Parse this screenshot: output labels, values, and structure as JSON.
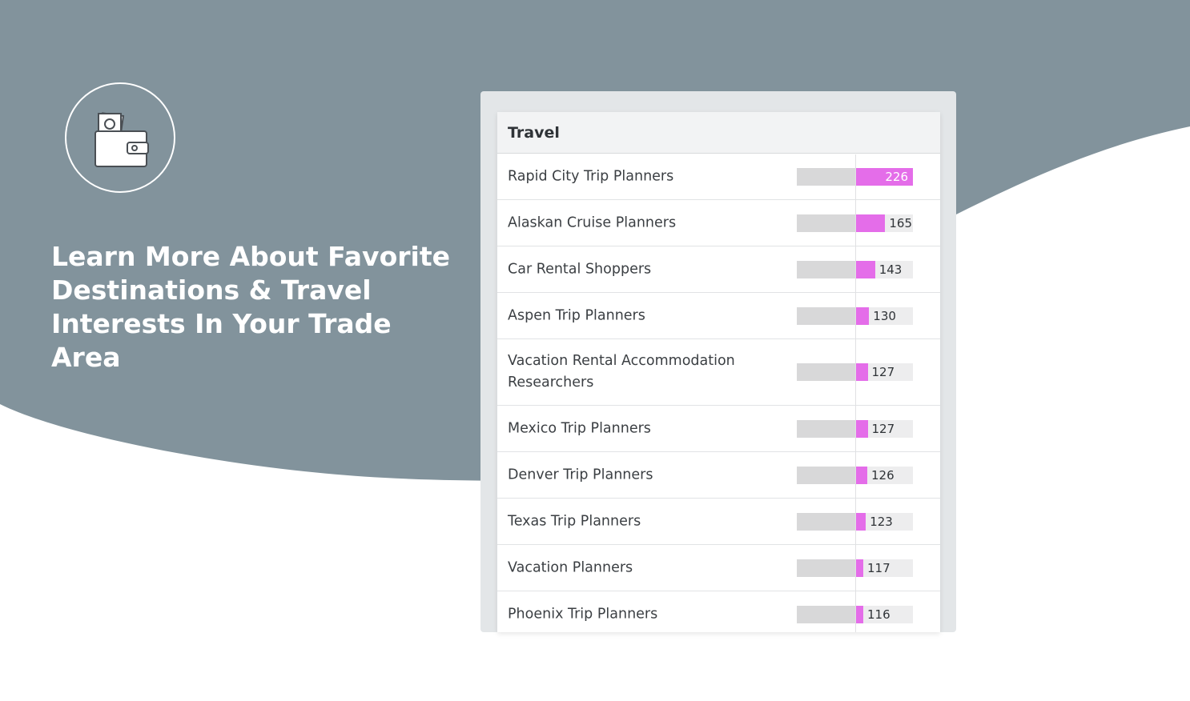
{
  "colors": {
    "background_slate": "#82939c",
    "accent_bar": "#e46de9",
    "base_bar": "#d8d8d9",
    "track": "#ededee",
    "header_bg": "#f2f3f4"
  },
  "hero": {
    "icon": "wallet-icon",
    "headline_lines": [
      "Learn More About Favorite",
      "Destinations & Travel",
      "Interests In Your Trade Area"
    ]
  },
  "panel": {
    "title": "Travel",
    "rows": [
      {
        "label": "Rapid City Trip Planners",
        "value": 226
      },
      {
        "label": "Alaskan Cruise Planners",
        "value": 165
      },
      {
        "label": "Car Rental Shoppers",
        "value": 143
      },
      {
        "label": "Aspen Trip Planners",
        "value": 130
      },
      {
        "label": "Vacation Rental Accommodation Researchers",
        "value": 127
      },
      {
        "label": "Mexico Trip Planners",
        "value": 127
      },
      {
        "label": "Denver Trip Planners",
        "value": 126
      },
      {
        "label": "Texas Trip Planners",
        "value": 123
      },
      {
        "label": "Vacation Planners",
        "value": 117
      },
      {
        "label": "Phoenix Trip Planners",
        "value": 116
      }
    ]
  }
}
